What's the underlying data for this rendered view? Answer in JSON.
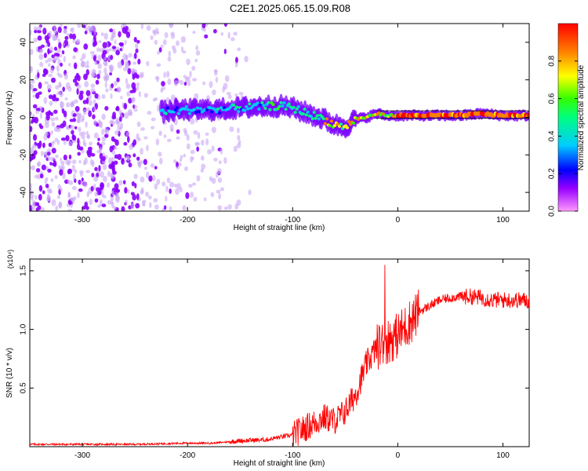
{
  "title": "C2E1.2025.065.15.09.R08",
  "chart_data": [
    {
      "type": "heatmap",
      "title": "C2E1.2025.065.15.09.R08",
      "xlabel": "Height of straight line (km)",
      "ylabel": "Frequency (Hz)",
      "xlim": [
        -350,
        125
      ],
      "ylim": [
        -50,
        50
      ],
      "xticks": [
        "-300",
        "-200",
        "-100",
        "0",
        "100"
      ],
      "yticks": [
        "-40",
        "-20",
        "0",
        "20",
        "40"
      ],
      "colorbar": {
        "label": "Normalized spectral amplitude",
        "range": [
          0,
          1
        ],
        "ticks": [
          "0.0",
          "0.2",
          "0.4",
          "0.6",
          "0.8"
        ],
        "colormap": [
          "#ff99ff",
          "#9900ff",
          "#0000ff",
          "#00ccff",
          "#00ff80",
          "#33ff00",
          "#ffff00",
          "#ff8000",
          "#ff0000"
        ]
      },
      "ridge": {
        "name": "dominant frequency (Hz)",
        "x": [
          -225,
          -200,
          -175,
          -150,
          -125,
          -110,
          -100,
          -90,
          -80,
          -70,
          -60,
          -50,
          -45,
          -40,
          -30,
          -20,
          -10,
          0,
          20,
          40,
          60,
          80,
          100,
          125
        ],
        "y": [
          3,
          4,
          4,
          5,
          6,
          6,
          5,
          3,
          1,
          -1,
          -4,
          -5,
          -3,
          -1,
          0,
          2,
          1,
          1,
          1,
          1,
          1,
          2,
          1,
          1
        ]
      },
      "noise_region_x": [
        -350,
        -140
      ]
    },
    {
      "type": "line",
      "xlabel": "Height of straight line (km)",
      "ylabel": "SNR (10 * v/v)",
      "scale_label": "(x10⁴)",
      "xlim": [
        -350,
        125
      ],
      "ylim": [
        0,
        1.6
      ],
      "xticks": [
        "-300",
        "-200",
        "-100",
        "0",
        "100"
      ],
      "yticks": [
        "0.5",
        "1.0",
        "1.5"
      ],
      "grid": false,
      "color": "#ff0000",
      "series": [
        {
          "x": [
            -350,
            -300,
            -250,
            -200,
            -175,
            -150,
            -125,
            -100,
            -90,
            -80,
            -70,
            -60,
            -50,
            -40,
            -30,
            -20,
            -10,
            0,
            10,
            20,
            30,
            40,
            50,
            60,
            70,
            80,
            90,
            100,
            110,
            120,
            125
          ],
          "y": [
            0.02,
            0.02,
            0.02,
            0.03,
            0.03,
            0.05,
            0.06,
            0.1,
            0.15,
            0.2,
            0.25,
            0.22,
            0.3,
            0.45,
            0.7,
            0.85,
            0.9,
            0.95,
            1.05,
            1.15,
            1.2,
            1.25,
            1.27,
            1.28,
            1.28,
            1.27,
            1.25,
            1.25,
            1.25,
            1.25,
            1.24
          ]
        }
      ]
    }
  ]
}
